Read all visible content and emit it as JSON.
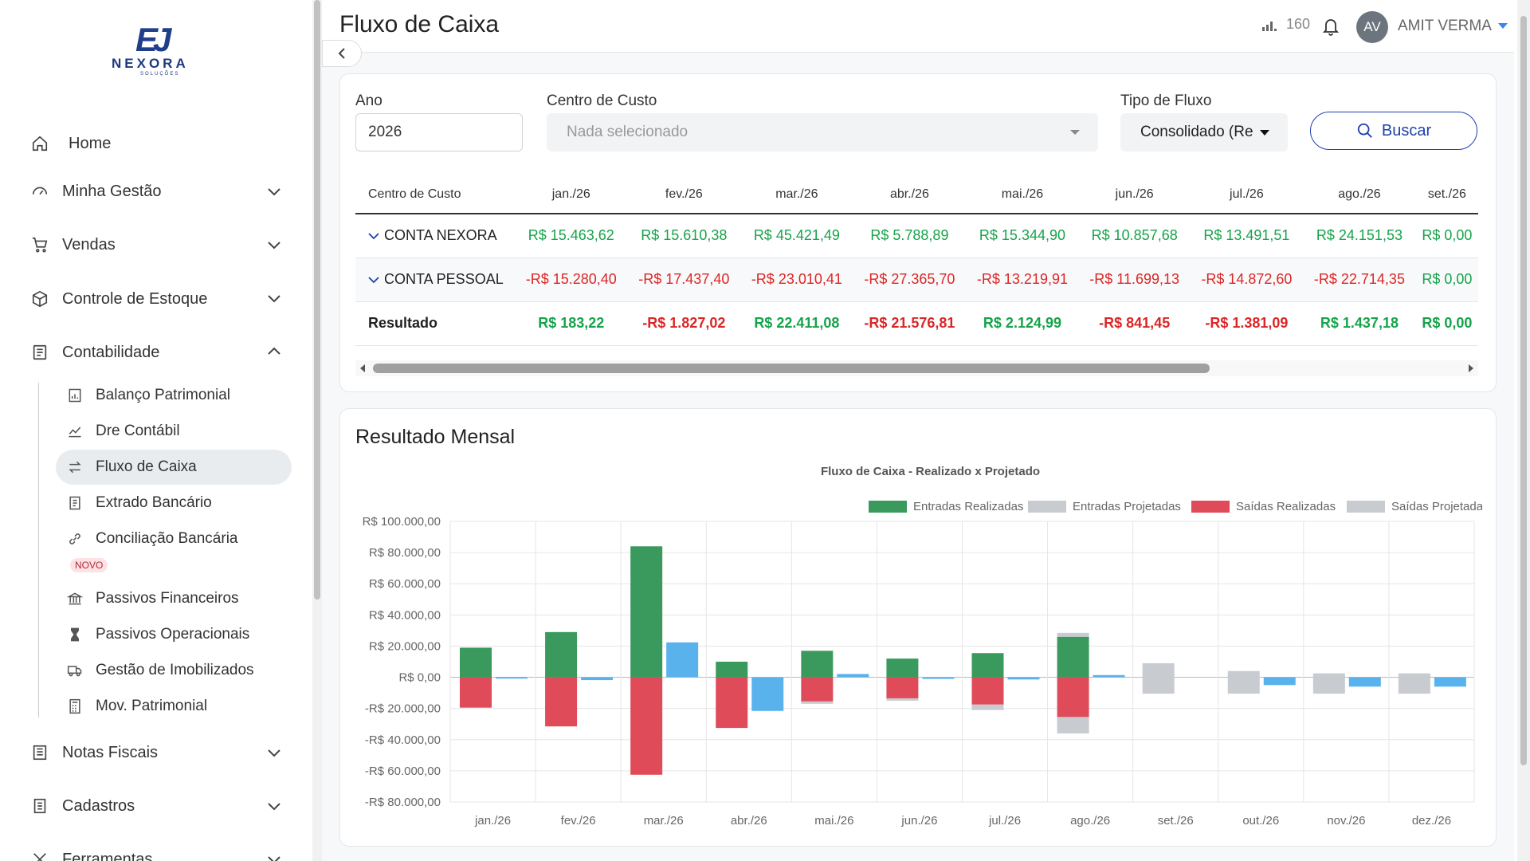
{
  "brand": {
    "name": "NEXORA",
    "subtitle": "SOLUÇÕES"
  },
  "sidebar": {
    "items": [
      {
        "label": "Home"
      },
      {
        "label": "Minha Gestão"
      },
      {
        "label": "Vendas"
      },
      {
        "label": "Controle de Estoque"
      },
      {
        "label": "Contabilidade"
      },
      {
        "label": "Notas Fiscais"
      },
      {
        "label": "Cadastros"
      },
      {
        "label": "Ferramentas"
      }
    ],
    "sub_items": [
      {
        "label": "Balanço Patrimonial"
      },
      {
        "label": "Dre Contábil"
      },
      {
        "label": "Fluxo de Caixa"
      },
      {
        "label": "Extrado Bancário"
      },
      {
        "label": "Conciliação Bancária"
      },
      {
        "label": "Passivos Financeiros"
      },
      {
        "label": "Passivos Operacionais"
      },
      {
        "label": "Gestão de Imobilizados"
      },
      {
        "label": "Mov. Patrimonial"
      }
    ],
    "novo_badge": "NOVO"
  },
  "header": {
    "title": "Fluxo de Caixa",
    "signal_value": "160",
    "avatar_initials": "AV",
    "user_name": "AMIT VERMA"
  },
  "filters": {
    "ano_label": "Ano",
    "ano_value": "2026",
    "centro_label": "Centro de Custo",
    "centro_placeholder": "Nada selecionado",
    "tipo_label": "Tipo de Fluxo",
    "tipo_value": "Consolidado (Re",
    "buscar_label": "Buscar"
  },
  "table": {
    "headers": [
      "Centro de Custo",
      "jan./26",
      "fev./26",
      "mar./26",
      "abr./26",
      "mai./26",
      "jun./26",
      "jul./26",
      "ago./26",
      "set./26"
    ],
    "rows": [
      {
        "name": "CONTA NEXORA",
        "values": [
          "R$ 15.463,62",
          "R$ 15.610,38",
          "R$ 45.421,49",
          "R$ 5.788,89",
          "R$ 15.344,90",
          "R$ 10.857,68",
          "R$ 13.491,51",
          "R$ 24.151,53",
          "R$ 0,00"
        ]
      },
      {
        "name": "CONTA PESSOAL",
        "values": [
          "-R$ 15.280,40",
          "-R$ 17.437,40",
          "-R$ 23.010,41",
          "-R$ 27.365,70",
          "-R$ 13.219,91",
          "-R$ 11.699,13",
          "-R$ 14.872,60",
          "-R$ 22.714,35",
          "R$ 0,00"
        ]
      },
      {
        "name": "Resultado",
        "values": [
          "R$ 183,22",
          "-R$ 1.827,02",
          "R$ 22.411,08",
          "-R$ 21.576,81",
          "R$ 2.124,99",
          "-R$ 841,45",
          "-R$ 1.381,09",
          "R$ 1.437,18",
          "R$ 0,00"
        ]
      }
    ]
  },
  "chart_section_title": "Resultado Mensal",
  "chart_data": {
    "type": "bar",
    "title": "Fluxo de Caixa - Realizado x Projetado",
    "categories": [
      "jan./26",
      "fev./26",
      "mar./26",
      "abr./26",
      "mai./26",
      "jun./26",
      "jul./26",
      "ago./26",
      "set./26",
      "out./26",
      "nov./26",
      "dez./26"
    ],
    "ylim": [
      -80000,
      100000
    ],
    "yticks": [
      "R$ 100.000,00",
      "R$ 80.000,00",
      "R$ 60.000,00",
      "R$ 40.000,00",
      "R$ 20.000,00",
      "R$ 0,00",
      "-R$ 20.000,00",
      "-R$ 40.000,00",
      "-R$ 60.000,00",
      "-R$ 80.000,00"
    ],
    "legend_position": "top",
    "series": [
      {
        "name": "Entradas Realizadas",
        "color": "#3a9a5e",
        "values": [
          19000,
          29000,
          84000,
          10000,
          17000,
          12000,
          15500,
          26000,
          0,
          0,
          0,
          0
        ]
      },
      {
        "name": "Entradas Projetadas",
        "color": "#c8cbcf",
        "values": [
          0,
          0,
          0,
          0,
          0,
          0,
          0,
          2500,
          9000,
          4000,
          2500,
          2500
        ]
      },
      {
        "name": "Saídas Realizadas",
        "color": "#e04b5a",
        "values": [
          -19500,
          -31500,
          -62500,
          -32500,
          -15500,
          -13500,
          -17500,
          -25500,
          0,
          0,
          0,
          0
        ]
      },
      {
        "name": "Saídas Projetadas",
        "color": "#c8cbcf",
        "values": [
          0,
          0,
          0,
          0,
          -1500,
          -1500,
          -3500,
          -10500,
          -10500,
          -10500,
          -10500,
          -10500
        ]
      },
      {
        "name": "Resultado",
        "color": "#5ab2ec",
        "values": [
          200,
          -1800,
          22400,
          -21600,
          2100,
          -800,
          -1400,
          1400,
          0,
          -5000,
          -6000,
          -6000
        ]
      }
    ]
  }
}
